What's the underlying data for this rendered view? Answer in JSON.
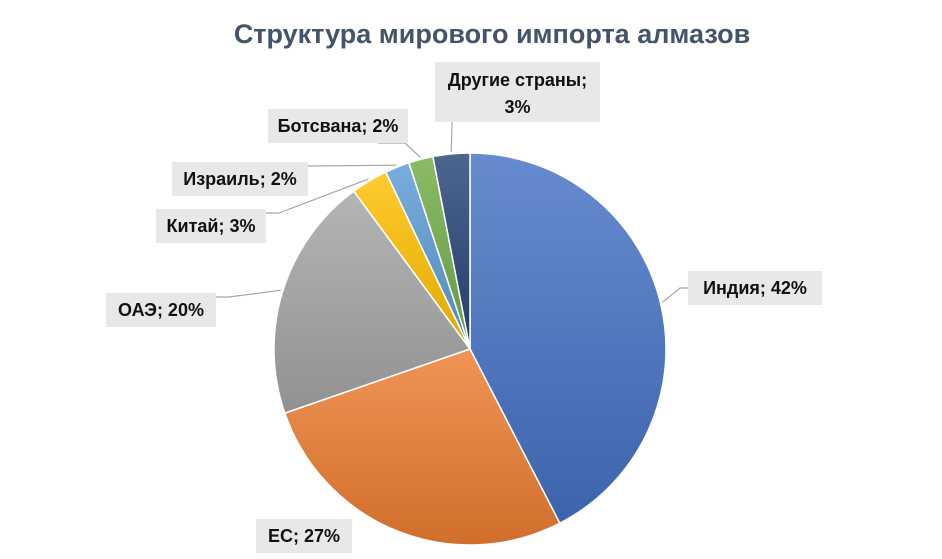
{
  "chart_data": {
    "type": "pie",
    "title": "Структура мирового импорта алмазов",
    "categories": [
      "Индия",
      "ЕС",
      "ОАЭ",
      "Китай",
      "Израиль",
      "Ботсвана",
      "Другие страны"
    ],
    "values": [
      42,
      27,
      20,
      3,
      2,
      2,
      3
    ],
    "unit": "%",
    "labels": [
      "Индия; 42%",
      "ЕС; 27%",
      "ОАЭ; 20%",
      "Китай; 3%",
      "Израиль; 2%",
      "Ботсвана; 2%"
    ],
    "label_other": {
      "line1": "Другие страны;",
      "line2": "3%"
    },
    "colors": [
      "#4472c4",
      "#ed7d31",
      "#a5a5a5",
      "#ffc000",
      "#5b9bd5",
      "#70ad47",
      "#264478"
    ],
    "legend": "none",
    "start_angle_deg": 0,
    "direction": "clockwise"
  }
}
